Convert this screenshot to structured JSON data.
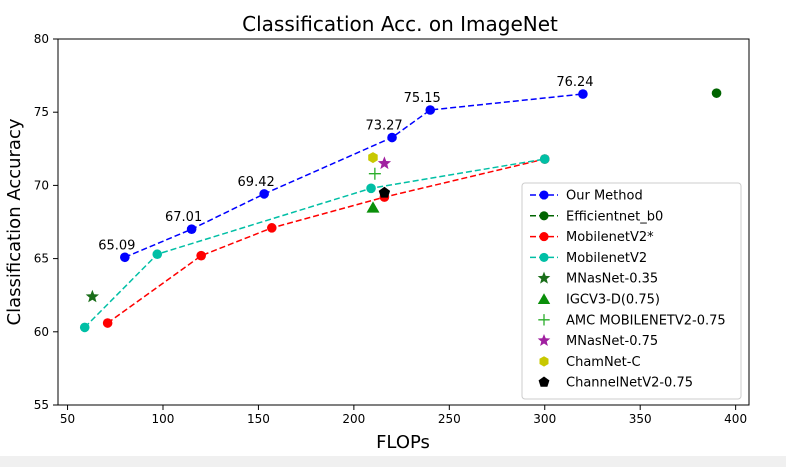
{
  "chart_data": {
    "type": "line",
    "title": "Classification Acc. on ImageNet",
    "xlabel": "FLOPs",
    "ylabel": "Classification Accuracy",
    "xlim": [
      45,
      407
    ],
    "ylim": [
      55,
      80
    ],
    "xticks": [
      50,
      100,
      150,
      200,
      250,
      300,
      350,
      400
    ],
    "yticks": [
      55,
      60,
      65,
      70,
      75,
      80
    ],
    "grid": false,
    "legend": "lower-right",
    "series": [
      {
        "name": "Our Method",
        "kind": "line",
        "color": "#0000ff",
        "marker": "circle",
        "x": [
          80,
          115,
          153,
          220,
          240,
          320
        ],
        "y": [
          65.09,
          67.01,
          69.42,
          73.27,
          75.15,
          76.24
        ],
        "labels": [
          "65.09",
          "67.01",
          "69.42",
          "73.27",
          "75.15",
          "76.24"
        ]
      },
      {
        "name": "Efficientnet_b0",
        "kind": "line",
        "color": "#006400",
        "marker": "circle",
        "x": [
          390
        ],
        "y": [
          76.3
        ]
      },
      {
        "name": "MobilenetV2*",
        "kind": "line",
        "color": "#ff0000",
        "marker": "circle",
        "x": [
          71,
          120,
          157,
          216,
          300
        ],
        "y": [
          60.6,
          65.2,
          67.1,
          69.2,
          71.8
        ]
      },
      {
        "name": "MobilenetV2",
        "kind": "line",
        "color": "#00bfa5",
        "marker": "circle",
        "x": [
          59,
          97,
          209,
          300
        ],
        "y": [
          60.3,
          65.3,
          69.8,
          71.8
        ]
      },
      {
        "name": "MNasNet-0.35",
        "kind": "point",
        "color": "#1a6e1a",
        "marker": "star",
        "x": [
          63
        ],
        "y": [
          62.4
        ]
      },
      {
        "name": "IGCV3-D(0.75)",
        "kind": "point",
        "color": "#0a8f0a",
        "marker": "triangle",
        "x": [
          210
        ],
        "y": [
          68.5
        ]
      },
      {
        "name": "AMC MOBILENETV2-0.75",
        "kind": "point",
        "color": "#2bae2b",
        "marker": "plus",
        "x": [
          211
        ],
        "y": [
          70.8
        ]
      },
      {
        "name": "MNasNet-0.75",
        "kind": "point",
        "color": "#a020a0",
        "marker": "star",
        "x": [
          216
        ],
        "y": [
          71.5
        ]
      },
      {
        "name": "ChamNet-C",
        "kind": "point",
        "color": "#c8c800",
        "marker": "hexagon",
        "x": [
          210
        ],
        "y": [
          71.9
        ]
      },
      {
        "name": "ChannelNetV2-0.75",
        "kind": "point",
        "color": "#000000",
        "marker": "pentagon",
        "x": [
          216
        ],
        "y": [
          69.5
        ]
      }
    ]
  }
}
